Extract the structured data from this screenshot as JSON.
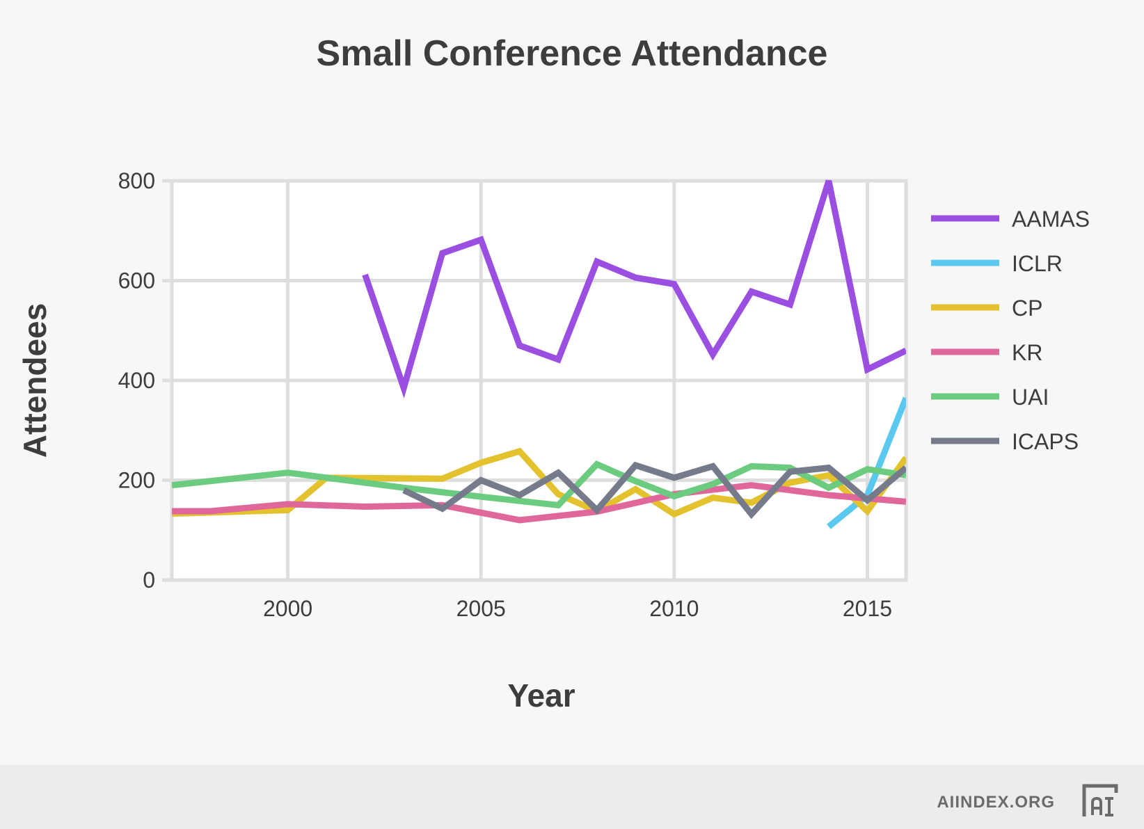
{
  "chart_data": {
    "type": "line",
    "title": "Small Conference Attendance",
    "xlabel": "Year",
    "ylabel": "Attendees",
    "xlim": [
      1997,
      2016
    ],
    "ylim": [
      0,
      800
    ],
    "xticks": [
      2000,
      2005,
      2010,
      2015
    ],
    "yticks": [
      0,
      200,
      400,
      600,
      800
    ],
    "grid": true,
    "legend_position": "right",
    "series": [
      {
        "name": "AAMAS",
        "color": "#9b4fe0",
        "points": [
          [
            2002,
            612
          ],
          [
            2003,
            385
          ],
          [
            2004,
            655
          ],
          [
            2005,
            682
          ],
          [
            2006,
            470
          ],
          [
            2007,
            442
          ],
          [
            2008,
            638
          ],
          [
            2009,
            606
          ],
          [
            2010,
            593
          ],
          [
            2011,
            452
          ],
          [
            2012,
            578
          ],
          [
            2013,
            552
          ],
          [
            2014,
            800
          ],
          [
            2015,
            422
          ],
          [
            2016,
            460
          ]
        ]
      },
      {
        "name": "ICLR",
        "color": "#5bc8f0",
        "points": [
          [
            2014,
            107
          ],
          [
            2015,
            170
          ],
          [
            2016,
            365
          ]
        ]
      },
      {
        "name": "CP",
        "color": "#e3c22e",
        "points": [
          [
            1997,
            133
          ],
          [
            2000,
            140
          ],
          [
            2001,
            205
          ],
          [
            2004,
            203
          ],
          [
            2005,
            235
          ],
          [
            2006,
            258
          ],
          [
            2007,
            172
          ],
          [
            2008,
            138
          ],
          [
            2009,
            182
          ],
          [
            2010,
            132
          ],
          [
            2011,
            165
          ],
          [
            2012,
            155
          ],
          [
            2013,
            195
          ],
          [
            2014,
            210
          ],
          [
            2015,
            138
          ],
          [
            2016,
            245
          ]
        ]
      },
      {
        "name": "KR",
        "color": "#e0679a",
        "points": [
          [
            1997,
            138
          ],
          [
            1998,
            138
          ],
          [
            2000,
            152
          ],
          [
            2002,
            147
          ],
          [
            2004,
            150
          ],
          [
            2006,
            120
          ],
          [
            2008,
            137
          ],
          [
            2010,
            172
          ],
          [
            2012,
            190
          ],
          [
            2014,
            170
          ],
          [
            2016,
            157
          ]
        ]
      },
      {
        "name": "UAI",
        "color": "#6bcb7e",
        "points": [
          [
            1997,
            190
          ],
          [
            2000,
            215
          ],
          [
            2003,
            185
          ],
          [
            2005,
            167
          ],
          [
            2007,
            150
          ],
          [
            2008,
            232
          ],
          [
            2009,
            198
          ],
          [
            2010,
            168
          ],
          [
            2011,
            192
          ],
          [
            2012,
            228
          ],
          [
            2013,
            225
          ],
          [
            2014,
            185
          ],
          [
            2015,
            222
          ],
          [
            2016,
            210
          ]
        ]
      },
      {
        "name": "ICAPS",
        "color": "#767b8c",
        "points": [
          [
            2003,
            180
          ],
          [
            2004,
            143
          ],
          [
            2005,
            200
          ],
          [
            2006,
            170
          ],
          [
            2007,
            215
          ],
          [
            2008,
            140
          ],
          [
            2009,
            230
          ],
          [
            2010,
            205
          ],
          [
            2011,
            228
          ],
          [
            2012,
            132
          ],
          [
            2013,
            217
          ],
          [
            2014,
            225
          ],
          [
            2015,
            160
          ],
          [
            2016,
            225
          ]
        ]
      }
    ]
  },
  "footer": {
    "brand": "AIINDEX.ORG",
    "logo_icon": "aiindex-logo-icon"
  }
}
